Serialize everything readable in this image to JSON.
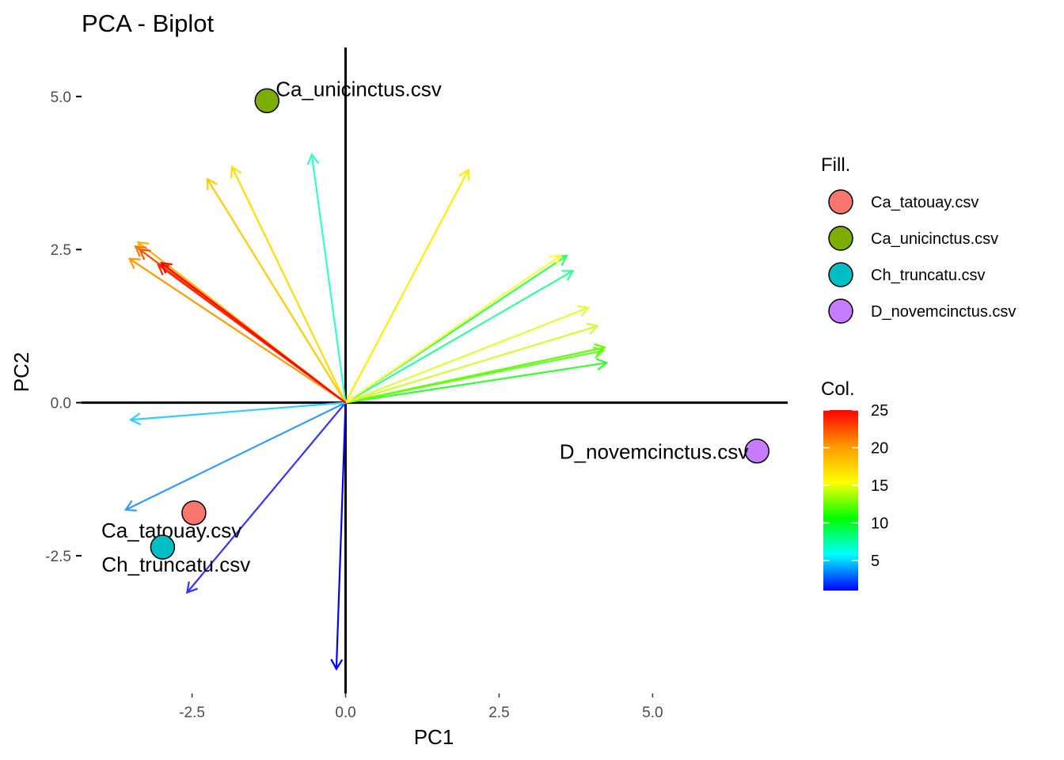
{
  "chart_data": {
    "type": "scatter",
    "subtype": "pca-biplot",
    "title": "PCA - Biplot",
    "xlabel": "PC1",
    "ylabel": "PC2",
    "xlim": [
      -4.3,
      7.2
    ],
    "ylim": [
      -4.75,
      5.8
    ],
    "x_ticks": [
      -2.5,
      0,
      2.5,
      5
    ],
    "x_tick_labels": [
      "-2.5",
      "0.0",
      "2.5",
      "5.0"
    ],
    "y_ticks": [
      -2.5,
      0,
      2.5,
      5
    ],
    "y_tick_labels": [
      "-2.5",
      "0.0",
      "2.5",
      "5.0"
    ],
    "grid": false,
    "reference_lines": [
      "x = 0",
      "y = 0"
    ],
    "points": [
      {
        "label": "Ca_tatouay.csv",
        "x": -2.47,
        "y": -1.8,
        "fill": "#F8766D"
      },
      {
        "label": "Ca_unicinctus.csv",
        "x": -1.28,
        "y": 4.93,
        "fill": "#7CAE00"
      },
      {
        "label": "Ch_truncatu.csv",
        "x": -2.98,
        "y": -2.36,
        "fill": "#00BFC4"
      },
      {
        "label": "D_novemcinctus.csv",
        "x": 6.7,
        "y": -0.79,
        "fill": "#C77CFF"
      }
    ],
    "arrows": [
      {
        "x": -0.15,
        "y": -4.35,
        "color": "#0000ff"
      },
      {
        "x": -2.58,
        "y": -3.1,
        "color": "#3333ff"
      },
      {
        "x": -3.58,
        "y": -1.75,
        "color": "#3399ff"
      },
      {
        "x": -3.5,
        "y": -0.28,
        "color": "#33ccff"
      },
      {
        "x": -0.55,
        "y": 4.05,
        "color": "#33ffcc"
      },
      {
        "x": 3.7,
        "y": 2.15,
        "color": "#33ff99"
      },
      {
        "x": 3.6,
        "y": 2.4,
        "color": "#33ff66"
      },
      {
        "x": 4.25,
        "y": 0.65,
        "color": "#33ff33"
      },
      {
        "x": 4.2,
        "y": 0.85,
        "color": "#66ff33"
      },
      {
        "x": 4.22,
        "y": 0.9,
        "color": "#66ff00"
      },
      {
        "x": 4.1,
        "y": 1.25,
        "color": "#ccff33"
      },
      {
        "x": 3.95,
        "y": 1.55,
        "color": "#ddff33"
      },
      {
        "x": 3.5,
        "y": 2.4,
        "color": "#ffff33"
      },
      {
        "x": 2.0,
        "y": 3.8,
        "color": "#ffee00"
      },
      {
        "x": -1.85,
        "y": 3.85,
        "color": "#ffdd00"
      },
      {
        "x": -2.25,
        "y": 3.65,
        "color": "#ffcc00"
      },
      {
        "x": -3.38,
        "y": 2.62,
        "color": "#ffb000"
      },
      {
        "x": -3.52,
        "y": 2.35,
        "color": "#ff9900"
      },
      {
        "x": -3.42,
        "y": 2.55,
        "color": "#ff7700"
      },
      {
        "x": -3.35,
        "y": 2.5,
        "color": "#ff5500"
      },
      {
        "x": -3.05,
        "y": 2.25,
        "color": "#ff2200"
      },
      {
        "x": -3.0,
        "y": 2.28,
        "color": "#ff0000"
      }
    ],
    "legend": {
      "placement": "right",
      "fill_title": "Fill.",
      "fill_entries": [
        {
          "label": "Ca_tatouay.csv",
          "color": "#F8766D"
        },
        {
          "label": "Ca_unicinctus.csv",
          "color": "#7CAE00"
        },
        {
          "label": "Ch_truncatu.csv",
          "color": "#00BFC4"
        },
        {
          "label": "D_novemcinctus.csv",
          "color": "#C77CFF"
        }
      ],
      "col_title": "Col.",
      "col_range": [
        1,
        25
      ],
      "col_ticks": [
        5,
        10,
        15,
        20,
        25
      ],
      "col_gradient": [
        "#0000ff",
        "#00ffff",
        "#00ff00",
        "#ffff00",
        "#ff9900",
        "#ff0000"
      ]
    }
  }
}
